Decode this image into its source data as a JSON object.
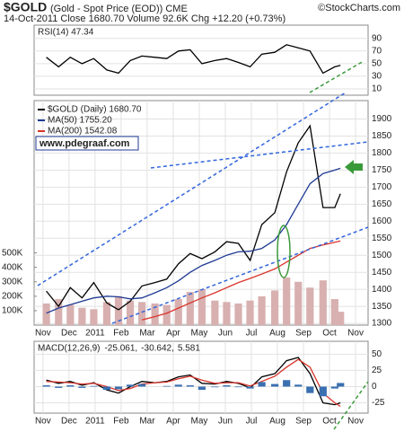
{
  "header": {
    "title": "$GOLD",
    "subtitle": "(Gold - Spot Price (EOD)) CME",
    "credit": "©StockCharts.com",
    "info": "14-Oct-2011   Close 1680.70   Volume 92.6K   Chg +12.20 (+0.73%)",
    "watermark": "www.pdegraaf.com"
  },
  "chart_data": [
    {
      "type": "line",
      "title": "RSI(14) 47.34",
      "x": [
        0.13,
        0.6,
        1.05,
        1.5,
        1.95,
        2.45,
        2.9,
        3.35,
        3.8,
        4.3,
        4.75,
        5.2,
        5.65,
        6.1,
        6.6,
        7.05,
        7.5,
        7.95,
        8.4,
        8.9,
        9.35,
        9.8,
        10.25,
        10.75,
        11.2,
        11.42
      ],
      "xlim": [
        -0.34,
        12.48
      ],
      "ylim": [
        0,
        111
      ],
      "yticks": [
        10,
        30,
        50,
        70,
        90
      ],
      "grid": true,
      "series": [
        {
          "color": "#000000",
          "values": [
            60,
            45,
            60,
            50,
            58,
            40,
            35,
            55,
            62,
            60,
            58,
            70,
            72,
            50,
            55,
            58,
            52,
            45,
            65,
            68,
            80,
            75,
            70,
            35,
            45,
            47.34
          ]
        }
      ]
    },
    {
      "type": "line",
      "x": [
        0.13,
        0.6,
        1.05,
        1.5,
        1.95,
        2.45,
        2.9,
        3.35,
        3.8,
        4.3,
        4.75,
        5.2,
        5.65,
        6.1,
        6.6,
        7.05,
        7.5,
        7.95,
        8.4,
        8.9,
        9.35,
        9.8,
        10.25,
        10.75,
        11.2,
        11.42
      ],
      "xlim": [
        -0.34,
        12.48
      ],
      "ylim": [
        1295,
        1954
      ],
      "yticks": [
        1300,
        1350,
        1400,
        1450,
        1500,
        1550,
        1600,
        1650,
        1700,
        1750,
        1800,
        1850,
        1900
      ],
      "y2lim": [
        0,
        1555000
      ],
      "y2ticks": [
        {
          "value": 100000,
          "label": "100K"
        },
        {
          "value": 200000,
          "label": "200K"
        },
        {
          "value": 300000,
          "label": "300K"
        },
        {
          "value": 400000,
          "label": "400K"
        },
        {
          "value": 500000,
          "label": "500K"
        }
      ],
      "xticks": [
        {
          "value": 0,
          "label": "Nov"
        },
        {
          "value": 1,
          "label": "Dec"
        },
        {
          "value": 2,
          "label": "2011"
        },
        {
          "value": 3,
          "label": "Feb"
        },
        {
          "value": 4,
          "label": "Mar"
        },
        {
          "value": 5,
          "label": "Apr"
        },
        {
          "value": 6,
          "label": "May"
        },
        {
          "value": 7,
          "label": "Jun"
        },
        {
          "value": 8,
          "label": "Jul"
        },
        {
          "value": 9,
          "label": "Aug"
        },
        {
          "value": 10,
          "label": "Sep"
        },
        {
          "value": 11,
          "label": "Oct"
        },
        {
          "value": 12,
          "label": "Nov"
        }
      ],
      "grid": true,
      "series": [
        {
          "style": "bar",
          "axis": "y2",
          "color": "#d8b0b0",
          "values": [
            150000,
            180000,
            140000,
            120000,
            110000,
            160000,
            200000,
            170000,
            160000,
            150000,
            140000,
            180000,
            230000,
            250000,
            170000,
            160000,
            150000,
            170000,
            200000,
            240000,
            330000,
            300000,
            260000,
            310000,
            180000,
            92600
          ]
        },
        {
          "name": "$GOLD (Daily) 1680.70",
          "color": "#000000",
          "values": [
            1395,
            1350,
            1405,
            1375,
            1420,
            1360,
            1340,
            1365,
            1410,
            1420,
            1430,
            1475,
            1505,
            1490,
            1510,
            1540,
            1535,
            1485,
            1590,
            1625,
            1745,
            1830,
            1880,
            1640,
            1640,
            1680.7
          ]
        },
        {
          "name": "MA(50) 1755.20",
          "color": "#1f3a93",
          "values": [
            1330,
            1345,
            1355,
            1365,
            1375,
            1380,
            1378,
            1372,
            1375,
            1390,
            1405,
            1425,
            1450,
            1470,
            1485,
            1500,
            1510,
            1512,
            1520,
            1545,
            1590,
            1650,
            1710,
            1740,
            1750,
            1755.2
          ]
        },
        {
          "name": "MA(200) 1542.08",
          "color": "#d9342b",
          "values": [
            null,
            null,
            null,
            null,
            null,
            null,
            null,
            null,
            1310,
            1320,
            1330,
            1345,
            1360,
            1375,
            1390,
            1405,
            1420,
            1432,
            1445,
            1460,
            1480,
            1500,
            1520,
            1530,
            1538,
            1542.08
          ]
        }
      ]
    },
    {
      "type": "line",
      "title": "MACD(12,26,9)",
      "x": [
        0.13,
        0.6,
        1.05,
        1.5,
        1.95,
        2.45,
        2.9,
        3.35,
        3.8,
        4.3,
        4.75,
        5.2,
        5.65,
        6.1,
        6.6,
        7.05,
        7.5,
        7.95,
        8.4,
        8.9,
        9.35,
        9.8,
        10.25,
        10.75,
        11.2,
        11.42
      ],
      "xlim": [
        -0.34,
        12.48
      ],
      "ylim": [
        -41,
        70
      ],
      "yticks": [
        -25,
        0,
        25,
        50
      ],
      "xticks": [
        {
          "value": 0,
          "label": "Nov"
        },
        {
          "value": 1,
          "label": "Dec"
        },
        {
          "value": 2,
          "label": "2011"
        },
        {
          "value": 3,
          "label": "Feb"
        },
        {
          "value": 4,
          "label": "Mar"
        },
        {
          "value": 5,
          "label": "Apr"
        },
        {
          "value": 6,
          "label": "May"
        },
        {
          "value": 7,
          "label": "Jun"
        },
        {
          "value": 8,
          "label": "Jul"
        },
        {
          "value": 9,
          "label": "Aug"
        },
        {
          "value": 10,
          "label": "Sep"
        },
        {
          "value": 11,
          "label": "Oct"
        },
        {
          "value": 12,
          "label": "Nov"
        }
      ],
      "grid": true,
      "series": [
        {
          "name": "-25.061,",
          "color": "#000000",
          "values": [
            10,
            5,
            8,
            2,
            6,
            -5,
            -10,
            0,
            8,
            6,
            8,
            15,
            18,
            5,
            4,
            8,
            5,
            -2,
            15,
            20,
            40,
            45,
            20,
            -25,
            -28,
            -25.061
          ]
        },
        {
          "name": "-30.642,",
          "color": "#d9342b",
          "values": [
            8,
            7,
            6,
            4,
            5,
            0,
            -6,
            -3,
            4,
            6,
            7,
            12,
            16,
            10,
            5,
            6,
            6,
            1,
            8,
            16,
            30,
            42,
            30,
            -10,
            -25,
            -30.642
          ]
        },
        {
          "name": "5.581",
          "style": "bar",
          "color": "#3a6fb0",
          "values": [
            2,
            -2,
            2,
            -2,
            1,
            -5,
            -4,
            3,
            4,
            0,
            1,
            3,
            2,
            -5,
            -1,
            2,
            -1,
            -3,
            7,
            4,
            10,
            3,
            -10,
            -15,
            -3,
            5.581
          ]
        }
      ]
    }
  ]
}
